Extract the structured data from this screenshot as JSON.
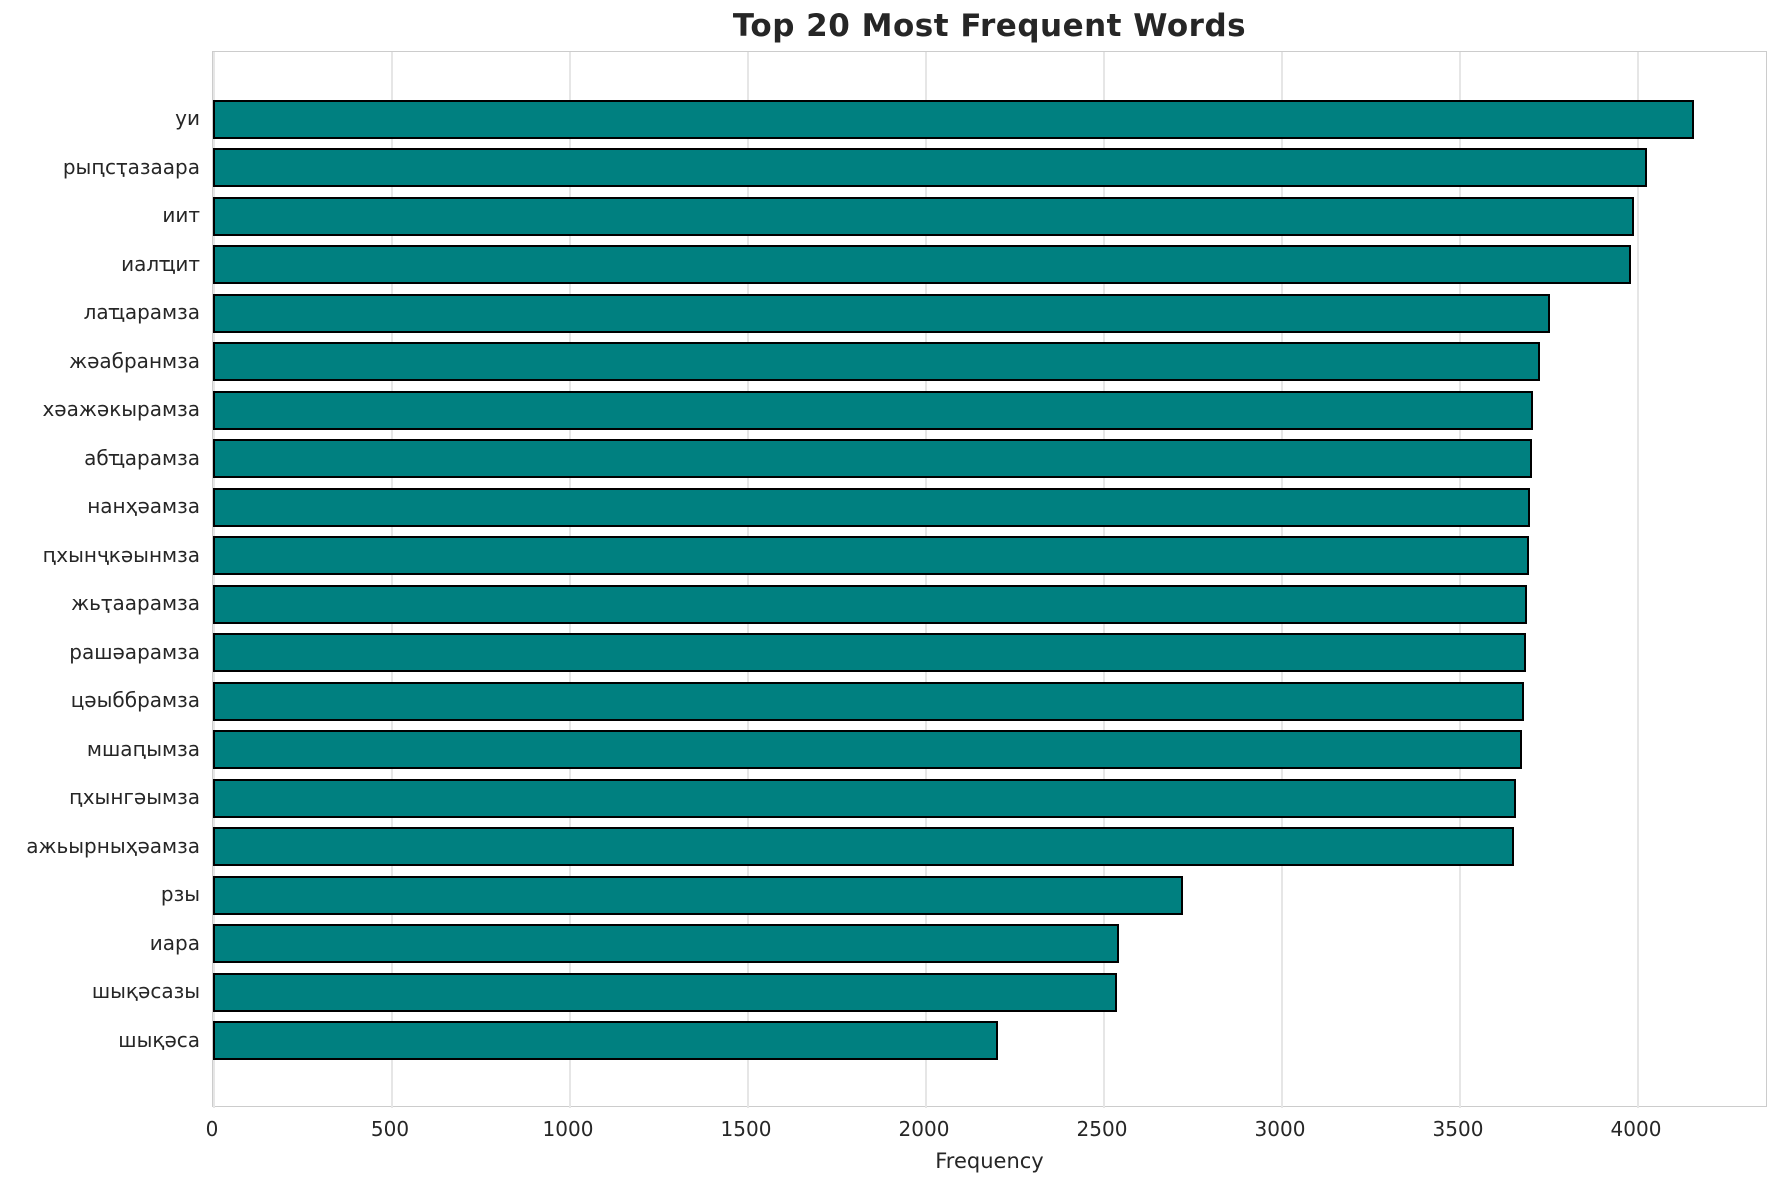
{
  "chart_data": {
    "type": "bar",
    "orientation": "horizontal",
    "title": "Top 20 Most Frequent Words",
    "xlabel": "Frequency",
    "ylabel": "",
    "categories": [
      "уи",
      "рыԥсҭазаара",
      "иит",
      "иалҵит",
      "лаҵарамза",
      "жәабранмза",
      "хәажәкырамза",
      "абҵарамза",
      "нанҳәамза",
      "ԥхынҷкәынмза",
      "жьҭаарамза",
      "рашәарамза",
      "цәыббрамза",
      "мшаԥымза",
      "ԥхынгәымза",
      "ажьырныҳәамза",
      "рзы",
      "иара",
      "шықәсазы",
      "шықәса"
    ],
    "values": [
      4160,
      4028,
      3991,
      3984,
      3755,
      3728,
      3708,
      3705,
      3699,
      3697,
      3690,
      3687,
      3684,
      3678,
      3661,
      3655,
      2726,
      2546,
      2540,
      2205
    ],
    "xlim": [
      0,
      4368
    ],
    "xticks": [
      0,
      500,
      1000,
      1500,
      2000,
      2500,
      3000,
      3500,
      4000
    ],
    "grid": true,
    "legend": "none",
    "colors": {
      "bar_fill": "#008080",
      "bar_edge": "#000000",
      "gridline": "#e6e6e6",
      "spine": "#cccccc",
      "text": "#262626",
      "background": "#ffffff"
    }
  }
}
